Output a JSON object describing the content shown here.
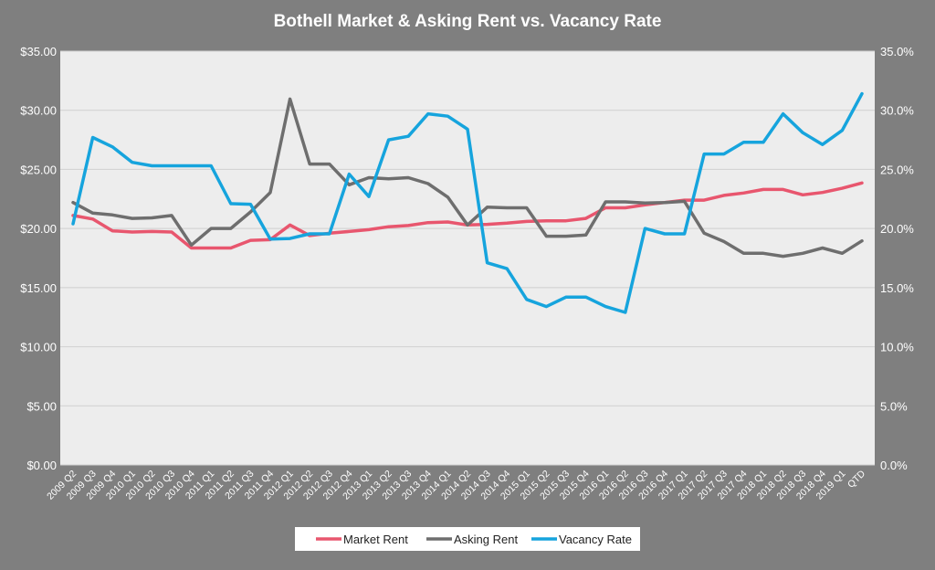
{
  "chart_data": {
    "type": "line",
    "title": "Bothell Market & Asking Rent vs. Vacancy Rate",
    "categories": [
      "2009 Q2",
      "2009 Q3",
      "2009 Q4",
      "2010 Q1",
      "2010 Q2",
      "2010 Q3",
      "2010 Q4",
      "2011 Q1",
      "2011 Q2",
      "2011 Q3",
      "2011 Q4",
      "2012 Q1",
      "2012 Q2",
      "2012 Q3",
      "2012 Q4",
      "2013 Q1",
      "2013 Q2",
      "2013 Q3",
      "2013 Q4",
      "2014 Q1",
      "2014 Q2",
      "2014 Q3",
      "2014 Q4",
      "2015 Q1",
      "2015 Q2",
      "2015 Q3",
      "2015 Q4",
      "2016 Q1",
      "2016 Q2",
      "2016 Q3",
      "2016 Q4",
      "2017 Q1",
      "2017 Q2",
      "2017 Q3",
      "2017 Q4",
      "2018 Q1",
      "2018 Q2",
      "2018 Q3",
      "2018 Q4",
      "2019 Q1",
      "QTD"
    ],
    "y_left": {
      "ylim": [
        0,
        35
      ],
      "ticks": [
        0,
        5,
        10,
        15,
        20,
        25,
        30,
        35
      ],
      "tick_labels": [
        "$0.00",
        "$5.00",
        "$10.00",
        "$15.00",
        "$20.00",
        "$25.00",
        "$30.00",
        "$35.00"
      ]
    },
    "y_right": {
      "ylim": [
        0,
        35
      ],
      "ticks": [
        0,
        5,
        10,
        15,
        20,
        25,
        30,
        35
      ],
      "tick_labels": [
        "0.0%",
        "5.0%",
        "10.0%",
        "15.0%",
        "20.0%",
        "25.0%",
        "30.0%",
        "35.0%"
      ]
    },
    "grid": true,
    "legend_position": "bottom",
    "series": [
      {
        "name": "Market Rent",
        "axis": "left",
        "color": "#e8566e",
        "values": [
          21.1,
          20.8,
          19.8,
          19.7,
          19.75,
          19.7,
          18.35,
          18.35,
          18.35,
          19.0,
          19.05,
          20.3,
          19.4,
          19.6,
          19.75,
          19.9,
          20.15,
          20.25,
          20.5,
          20.55,
          20.3,
          20.35,
          20.45,
          20.6,
          20.65,
          20.65,
          20.85,
          21.75,
          21.75,
          22.0,
          22.2,
          22.4,
          22.4,
          22.8,
          23.0,
          23.3,
          23.3,
          22.85,
          23.05,
          23.4,
          23.85
        ]
      },
      {
        "name": "Asking Rent",
        "axis": "left",
        "color": "#6e6e6e",
        "values": [
          22.2,
          21.3,
          21.15,
          20.85,
          20.9,
          21.1,
          18.6,
          20.0,
          20.0,
          21.4,
          23.05,
          30.95,
          25.45,
          25.45,
          23.7,
          24.3,
          24.2,
          24.3,
          23.8,
          22.65,
          20.3,
          21.8,
          21.75,
          21.75,
          19.35,
          19.35,
          19.45,
          22.25,
          22.25,
          22.15,
          22.2,
          22.3,
          19.6,
          18.9,
          17.9,
          17.9,
          17.65,
          17.9,
          18.35,
          17.9,
          18.95
        ]
      },
      {
        "name": "Vacancy Rate",
        "axis": "right",
        "color": "#16a4dd",
        "values": [
          20.4,
          27.7,
          26.9,
          25.6,
          25.3,
          25.3,
          25.3,
          25.3,
          22.1,
          22.05,
          19.1,
          19.15,
          19.55,
          19.55,
          24.6,
          22.7,
          27.5,
          27.8,
          29.7,
          29.5,
          28.4,
          17.1,
          16.6,
          14.0,
          13.4,
          14.2,
          14.2,
          13.4,
          12.9,
          20.0,
          19.55,
          19.55,
          26.3,
          26.3,
          27.3,
          27.3,
          29.7,
          28.1,
          27.1,
          28.3,
          31.4
        ]
      }
    ]
  }
}
